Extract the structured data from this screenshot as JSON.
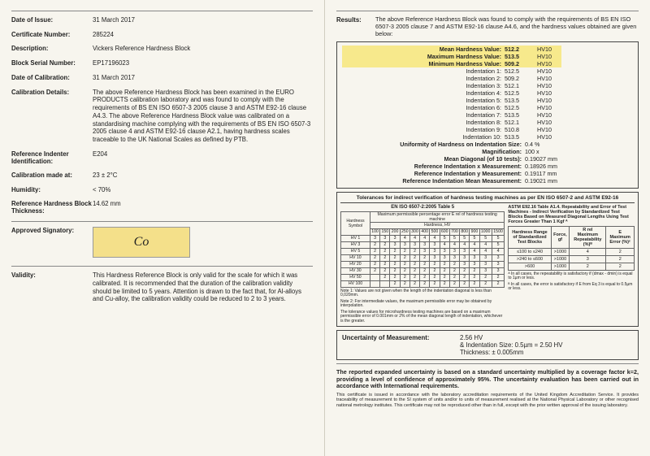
{
  "left": {
    "date_issue_lbl": "Date of Issue:",
    "date_issue": "31 March 2017",
    "cert_no_lbl": "Certificate Number:",
    "cert_no": "285224",
    "desc_lbl": "Description:",
    "desc": "Vickers Reference Hardness Block",
    "serial_lbl": "Block Serial Number:",
    "serial": "EP17196023",
    "cal_date_lbl": "Date of Calibration:",
    "cal_date": "31 March 2017",
    "cal_det_lbl": "Calibration Details:",
    "cal_det": "The above Reference Hardness Block has been examined in the EURO PRODUCTS calibration laboratory and was found to comply with the requirements of BS EN ISO 6507-3 2005 clause 3 and ASTM E92-16 clause A4.3. The above Reference Hardness Block value was calibrated on a standardising machine complying with the requirements of BS EN ISO 6507-3 2005 clause 4 and ASTM E92-16 clause A2.1, having hardness scales traceable to the UK National Scales as defined by PTB.",
    "indenter_lbl": "Reference Indenter Identification:",
    "indenter": "E204",
    "calmade_lbl": "Calibration made at:",
    "calmade": "23 ± 2°C",
    "humidity_lbl": "Humidity:",
    "humidity": "< 70%",
    "thick_lbl": "Reference Hardness Block Thickness:",
    "thick": "14.62 mm",
    "sig_lbl": "Approved Signatory:",
    "validity_lbl": "Validity:",
    "validity": "This Hardness Reference Block is only valid for the scale for which it was calibrated. It is recommended that the duration of the calibration validity should be limited to 5 years. Attention is drawn to the fact that, for Al-alloys and Cu-alloy, the calibration validity could be reduced to 2 to 3 years."
  },
  "right": {
    "results_lbl": "Results:",
    "results_txt": "The above Reference Hardness Block was found to comply with the requirements of BS EN ISO 6507-3 2005 clause 7 and ASTM E92-16 clause A4.6, and the hardness values obtained are given below:",
    "unit": "HV10",
    "stats": [
      {
        "l": "Mean Hardness Value:",
        "v": "512.2"
      },
      {
        "l": "Maximum Hardness Value:",
        "v": "513.5"
      },
      {
        "l": "Minimum Hardness Value:",
        "v": "509.2"
      }
    ],
    "indent": [
      {
        "l": "Indentation 1:",
        "v": "512.5"
      },
      {
        "l": "Indentation 2:",
        "v": "509.2"
      },
      {
        "l": "Indentation 3:",
        "v": "512.1"
      },
      {
        "l": "Indentation 4:",
        "v": "512.5"
      },
      {
        "l": "Indentation 5:",
        "v": "513.5"
      },
      {
        "l": "Indentation 6:",
        "v": "512.5"
      },
      {
        "l": "Indentation 7:",
        "v": "513.5"
      },
      {
        "l": "Indentation 8:",
        "v": "512.1"
      },
      {
        "l": "Indentation 9:",
        "v": "510.8"
      },
      {
        "l": "Indentation 10:",
        "v": "513.5"
      }
    ],
    "misc": [
      {
        "l": "Uniformity of Hardness on Indentation Size:",
        "v": "0.4 %"
      },
      {
        "l": "Magnification:",
        "v": "100 x"
      },
      {
        "l": "Mean Diagonal (of 10 tests):",
        "v": "0.19027 mm"
      },
      {
        "l": "Reference Indentation x Measurement:",
        "v": "0.18926 mm"
      },
      {
        "l": "Reference Indentation y Measurement:",
        "v": "0.19117 mm"
      },
      {
        "l": "Reference Indentation Mean Measurement:",
        "v": "0.19021 mm"
      }
    ],
    "tol_title": "Tolerances for indirect verification of hardness testing machines as per EN ISO 6507-2 and ASTM E92-16",
    "tol_left_title": "EN ISO 6507-2:2005 Table 5",
    "tol_right_title": "ASTM E92.16 Table A1.4. Repeatability and Error of Test Machines - Indirect Verification by Standardized Test Blocks Based on Measured Diagonal Lengths Using Test Forces Greater Than 1 Kgf ᴬ",
    "tol_left_h1": "Hardness Symbol",
    "tol_left_h2": "Hardness, HV",
    "tol_cols": [
      "",
      "100",
      "150",
      "200",
      "250",
      "300",
      "400",
      "500",
      "600",
      "700",
      "800",
      "900",
      "1000",
      "1500"
    ],
    "tol_rows": [
      {
        "s": "HV 1",
        "c": [
          "",
          "3",
          "3",
          "3",
          "4",
          "4",
          "4",
          "4",
          "5",
          "5",
          "5",
          "5",
          "5",
          "5"
        ]
      },
      {
        "s": "HV 3",
        "c": [
          "",
          "2",
          "2",
          "3",
          "3",
          "3",
          "3",
          "3",
          "4",
          "4",
          "4",
          "4",
          "4",
          "5"
        ]
      },
      {
        "s": "HV 5",
        "c": [
          "",
          "2",
          "2",
          "2",
          "2",
          "2",
          "3",
          "3",
          "3",
          "3",
          "3",
          "4",
          "4",
          "4"
        ]
      },
      {
        "s": "HV 10",
        "c": [
          "",
          "2",
          "2",
          "2",
          "2",
          "2",
          "2",
          "3",
          "3",
          "3",
          "3",
          "3",
          "3",
          "3"
        ]
      },
      {
        "s": "HV 20",
        "c": [
          "",
          "2",
          "2",
          "2",
          "2",
          "2",
          "2",
          "2",
          "2",
          "2",
          "3",
          "3",
          "3",
          "3"
        ]
      },
      {
        "s": "HV 30",
        "c": [
          "",
          "2",
          "2",
          "2",
          "2",
          "2",
          "2",
          "2",
          "2",
          "2",
          "2",
          "2",
          "3",
          "3"
        ]
      },
      {
        "s": "HV 50",
        "c": [
          "",
          "",
          "2",
          "2",
          "2",
          "2",
          "2",
          "2",
          "2",
          "2",
          "2",
          "2",
          "2",
          "2"
        ]
      },
      {
        "s": "HV 100",
        "c": [
          "",
          "",
          "",
          "2",
          "2",
          "2",
          "2",
          "2",
          "2",
          "2",
          "2",
          "2",
          "2",
          "2"
        ]
      }
    ],
    "tol_note1": "Note 1: Values are not given when the length of the indentation diagonal is less than 0,020mm.",
    "tol_note2": "Note 2: For intermediate values, the maximum permissible error may be obtained by interpolation.",
    "tol_note3": "The tolerance values for microhardness testing machines are based on a maximum permissible error of 0.001mm or 2% of the mean diagonal length of indentation, whichever is the greater.",
    "tol_r_h1": "Hardness Range of Standardized Test Blocks",
    "tol_r_h2": "Force, gf",
    "tol_r_h3": "R rel\nMaximum Repeatability (%)ᴮ",
    "tol_r_h4": "E\nMaximum Error (%)ᶜ",
    "tol_r_rows": [
      {
        "a": "≤100 to ≤240",
        "b": ">1000",
        "c": "4",
        "d": "2"
      },
      {
        "a": ">240 to ≤600",
        "b": ">1000",
        "c": "3",
        "d": "2"
      },
      {
        "a": ">600",
        "b": ">1000",
        "c": "2",
        "d": "2"
      }
    ],
    "tol_r_notea": "ᴬ In all cases, the repeatability is satisfactory if (dmax - dmin) is equal to 1µm or less.",
    "tol_r_noteb": "ᴮ In all cases, the error is satisfactory if E from Eq 3 is equal to 0.5µm or less.",
    "uom_lbl": "Uncertainty of Measurement:",
    "uom_val": "2.56  HV\n& Indentation Size: 0.5µm = 2.50 HV\nThickness:  ± 0.005mm",
    "footer1": "The reported expanded uncertainty is based on a standard uncertainty multiplied by a coverage factor k=2, providing a level of confidence of approximately 95%. The uncertainty evaluation has been carried out in accordance with International requirements.",
    "footer2": "This certificate is issued in accordance with the laboratory accreditation requirements of the United Kingdom Accreditation Service. It provides traceability of measurement to the SI system of units and/or to units of measurement realised at the National Physical Laboratory or other recognised national metrology institutes. This certificate may not be reproduced other than in full, except with the prior written approval of the issuing laboratory."
  }
}
